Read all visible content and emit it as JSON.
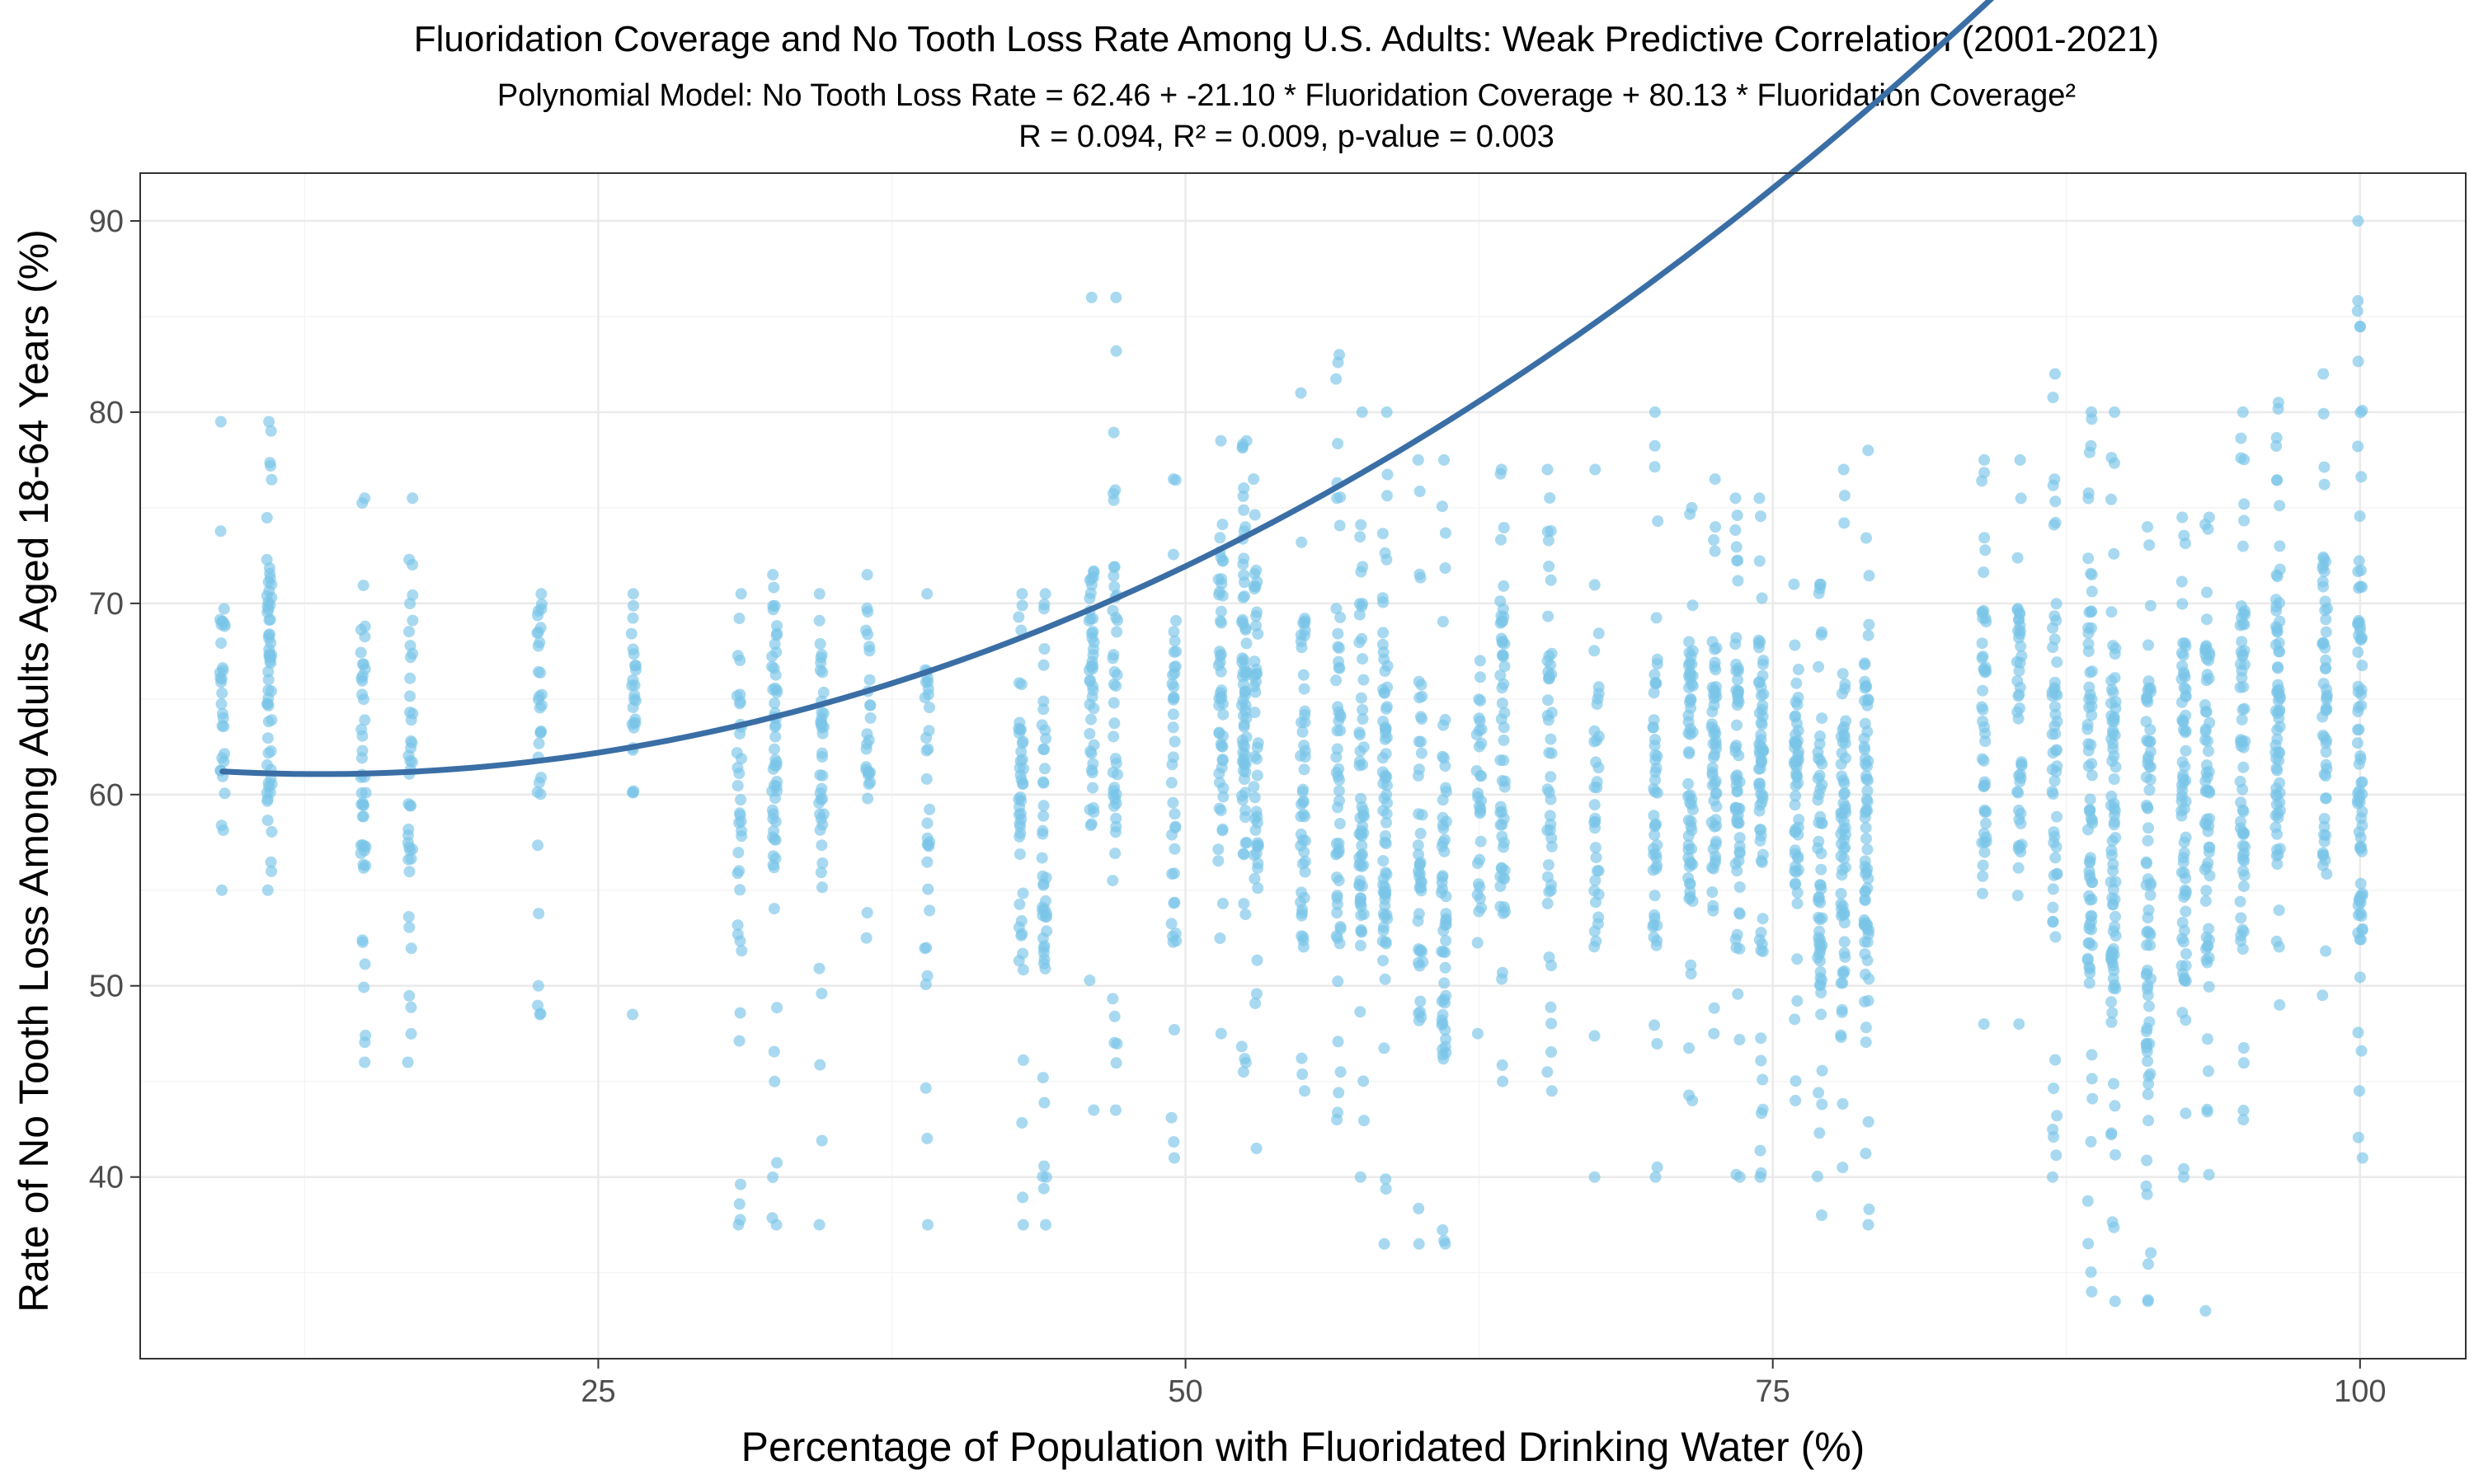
{
  "chart_data": {
    "type": "scatter",
    "title": "Fluoridation Coverage and No Tooth Loss Rate Among U.S. Adults: Weak Predictive Correlation (2001-2021)",
    "subtitle_line1": "Polynomial Model: No Tooth Loss Rate = 62.46 + -21.10 * Fluoridation Coverage + 80.13 * Fluoridation Coverage²",
    "subtitle_line2": "R = 0.094, R² = 0.009, p-value = 0.003",
    "xlabel": "Percentage of Population with Fluoridated Drinking Water (%)",
    "ylabel": "Rate of No Tooth Loss Among Adults Aged 18-64 Years (%)",
    "xlim": [
      5.5,
      104.5
    ],
    "ylim": [
      30.5,
      92.5
    ],
    "x_ticks": [
      25,
      50,
      75,
      100
    ],
    "y_ticks": [
      40,
      50,
      60,
      70,
      80,
      90
    ],
    "x_minor_ticks": [
      12.5,
      37.5,
      62.5,
      87.5
    ],
    "y_minor_ticks": [
      35,
      45,
      55,
      65,
      75,
      85
    ],
    "grid": true,
    "legend": "none",
    "point_color": "#7AC5E8",
    "line_color": "#3A6EA5",
    "model": {
      "intercept": 62.46,
      "linear": -21.1,
      "quadratic": 80.13,
      "input": "Fluoridation Coverage (proportion)"
    },
    "columns": [
      {
        "x": 9,
        "ymin": 55,
        "ymax": 79.5,
        "n": 30,
        "lo": 60,
        "hi": 70
      },
      {
        "x": 11,
        "ymin": 55,
        "ymax": 79.5,
        "n": 60,
        "lo": 58,
        "hi": 72
      },
      {
        "x": 15,
        "ymin": 46,
        "ymax": 75.5,
        "n": 45,
        "lo": 56,
        "hi": 70
      },
      {
        "x": 17,
        "ymin": 46,
        "ymax": 75.5,
        "n": 40,
        "lo": 56,
        "hi": 70
      },
      {
        "x": 22.5,
        "ymin": 48.5,
        "ymax": 70.5,
        "n": 30,
        "lo": 60,
        "hi": 70
      },
      {
        "x": 26.5,
        "ymin": 48.5,
        "ymax": 70.5,
        "n": 25,
        "lo": 60,
        "hi": 70
      },
      {
        "x": 31,
        "ymin": 37.5,
        "ymax": 70.5,
        "n": 35,
        "lo": 55,
        "hi": 68
      },
      {
        "x": 32.5,
        "ymin": 37.5,
        "ymax": 71.5,
        "n": 55,
        "lo": 56,
        "hi": 70
      },
      {
        "x": 34.5,
        "ymin": 37.5,
        "ymax": 70.5,
        "n": 40,
        "lo": 55,
        "hi": 68
      },
      {
        "x": 36.5,
        "ymin": 52.5,
        "ymax": 71.5,
        "n": 25,
        "lo": 60,
        "hi": 70
      },
      {
        "x": 39,
        "ymin": 37.5,
        "ymax": 70.5,
        "n": 30,
        "lo": 50,
        "hi": 66
      },
      {
        "x": 43,
        "ymin": 37.5,
        "ymax": 70.5,
        "n": 45,
        "lo": 50,
        "hi": 66
      },
      {
        "x": 44,
        "ymin": 37.5,
        "ymax": 70.5,
        "n": 45,
        "lo": 50,
        "hi": 66
      },
      {
        "x": 46,
        "ymin": 43.5,
        "ymax": 86,
        "n": 45,
        "lo": 58,
        "hi": 72
      },
      {
        "x": 47,
        "ymin": 43.5,
        "ymax": 86,
        "n": 45,
        "lo": 58,
        "hi": 72
      },
      {
        "x": 49.5,
        "ymin": 41,
        "ymax": 76.5,
        "n": 40,
        "lo": 52,
        "hi": 70
      },
      {
        "x": 51.5,
        "ymin": 47.5,
        "ymax": 78.5,
        "n": 50,
        "lo": 58,
        "hi": 74
      },
      {
        "x": 52.5,
        "ymin": 45.5,
        "ymax": 78.5,
        "n": 70,
        "lo": 58,
        "hi": 74
      },
      {
        "x": 53,
        "ymin": 41.5,
        "ymax": 76.5,
        "n": 45,
        "lo": 56,
        "hi": 72
      },
      {
        "x": 55,
        "ymin": 44.5,
        "ymax": 81,
        "n": 50,
        "lo": 52,
        "hi": 70
      },
      {
        "x": 56.5,
        "ymin": 43,
        "ymax": 83,
        "n": 55,
        "lo": 52,
        "hi": 70
      },
      {
        "x": 57.5,
        "ymin": 40,
        "ymax": 80,
        "n": 60,
        "lo": 52,
        "hi": 70
      },
      {
        "x": 58.5,
        "ymin": 36.5,
        "ymax": 80,
        "n": 70,
        "lo": 50,
        "hi": 68
      },
      {
        "x": 60,
        "ymin": 36.5,
        "ymax": 77.5,
        "n": 45,
        "lo": 48,
        "hi": 66
      },
      {
        "x": 61,
        "ymin": 36.5,
        "ymax": 77.5,
        "n": 55,
        "lo": 46,
        "hi": 62
      },
      {
        "x": 62.5,
        "ymin": 47.5,
        "ymax": 67,
        "n": 30,
        "lo": 54,
        "hi": 64
      },
      {
        "x": 63.5,
        "ymin": 45,
        "ymax": 77,
        "n": 55,
        "lo": 54,
        "hi": 70
      },
      {
        "x": 65.5,
        "ymin": 44.5,
        "ymax": 77,
        "n": 45,
        "lo": 54,
        "hi": 68
      },
      {
        "x": 67.5,
        "ymin": 40,
        "ymax": 77,
        "n": 35,
        "lo": 52,
        "hi": 66
      },
      {
        "x": 70,
        "ymin": 40,
        "ymax": 80,
        "n": 50,
        "lo": 52,
        "hi": 66
      },
      {
        "x": 71.5,
        "ymin": 44,
        "ymax": 75,
        "n": 60,
        "lo": 54,
        "hi": 68
      },
      {
        "x": 72.5,
        "ymin": 47.5,
        "ymax": 76.5,
        "n": 55,
        "lo": 56,
        "hi": 68
      },
      {
        "x": 73.5,
        "ymin": 40,
        "ymax": 75.5,
        "n": 60,
        "lo": 56,
        "hi": 68
      },
      {
        "x": 74.5,
        "ymin": 40,
        "ymax": 75.5,
        "n": 65,
        "lo": 56,
        "hi": 68
      },
      {
        "x": 76,
        "ymin": 44,
        "ymax": 71,
        "n": 55,
        "lo": 54,
        "hi": 66
      },
      {
        "x": 77,
        "ymin": 38,
        "ymax": 71,
        "n": 60,
        "lo": 50,
        "hi": 64
      },
      {
        "x": 78,
        "ymin": 40.5,
        "ymax": 77,
        "n": 65,
        "lo": 50,
        "hi": 66
      },
      {
        "x": 79,
        "ymin": 37.5,
        "ymax": 78,
        "n": 70,
        "lo": 50,
        "hi": 66
      },
      {
        "x": 84,
        "ymin": 48,
        "ymax": 77.5,
        "n": 45,
        "lo": 56,
        "hi": 70
      },
      {
        "x": 85.5,
        "ymin": 48,
        "ymax": 77.5,
        "n": 45,
        "lo": 56,
        "hi": 70
      },
      {
        "x": 87,
        "ymin": 40,
        "ymax": 82,
        "n": 55,
        "lo": 52,
        "hi": 70
      },
      {
        "x": 88.5,
        "ymin": 34,
        "ymax": 80,
        "n": 75,
        "lo": 50,
        "hi": 70
      },
      {
        "x": 89.5,
        "ymin": 33.5,
        "ymax": 80,
        "n": 80,
        "lo": 48,
        "hi": 68
      },
      {
        "x": 91,
        "ymin": 33.5,
        "ymax": 74,
        "n": 75,
        "lo": 46,
        "hi": 66
      },
      {
        "x": 92.5,
        "ymin": 40,
        "ymax": 74.5,
        "n": 70,
        "lo": 50,
        "hi": 68
      },
      {
        "x": 93.5,
        "ymin": 33,
        "ymax": 74.5,
        "n": 65,
        "lo": 50,
        "hi": 68
      },
      {
        "x": 95,
        "ymin": 43,
        "ymax": 80,
        "n": 65,
        "lo": 52,
        "hi": 70
      },
      {
        "x": 96.5,
        "ymin": 49,
        "ymax": 80.5,
        "n": 70,
        "lo": 56,
        "hi": 72
      },
      {
        "x": 98.5,
        "ymin": 49.5,
        "ymax": 82,
        "n": 55,
        "lo": 56,
        "hi": 72
      },
      {
        "x": 100,
        "ymin": 41,
        "ymax": 90,
        "n": 80,
        "lo": 52,
        "hi": 72
      }
    ]
  }
}
